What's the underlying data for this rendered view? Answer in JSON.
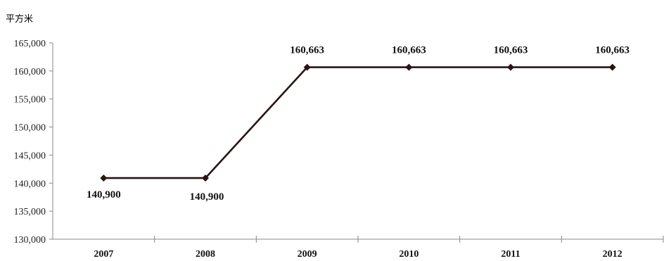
{
  "chart_data": {
    "type": "line",
    "unit": "平方米",
    "categories": [
      "2007",
      "2008",
      "2009",
      "2010",
      "2011",
      "2012"
    ],
    "series": [
      {
        "values": [
          140900,
          140900,
          160663,
          160663,
          160663,
          160663
        ]
      }
    ],
    "data_labels": [
      "140,900",
      "140,900",
      "160,663",
      "160,663",
      "160,663",
      "160,663"
    ],
    "ylim": [
      130000,
      165000
    ],
    "y_ticks": [
      130000,
      135000,
      140000,
      145000,
      150000,
      155000,
      160000,
      165000
    ],
    "y_tick_labels": [
      "130,000",
      "135,000",
      "140,000",
      "145,000",
      "150,000",
      "155,000",
      "160,000",
      "165,000"
    ],
    "grid": false,
    "legend": "none",
    "colors": {
      "line": "#2a1412",
      "axis": "#888888"
    }
  }
}
